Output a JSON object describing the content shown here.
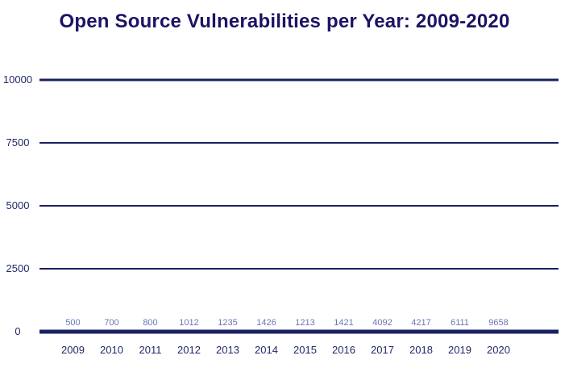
{
  "title": "Open Source Vulnerabilities per Year: 2009-2020",
  "colors": {
    "title_text": "#1b1464",
    "bar": "#222968",
    "highlight_bar": "#fa0d18",
    "value_label": "#6b77b5",
    "axis_label": "#222968",
    "gridline": "#1a2062",
    "background": "#ffffff"
  },
  "chart_data": {
    "type": "bar",
    "title": "Open Source Vulnerabilities per Year: 2009-2020",
    "categories": [
      "2009",
      "2010",
      "2011",
      "2012",
      "2013",
      "2014",
      "2015",
      "2016",
      "2017",
      "2018",
      "2019",
      "2020"
    ],
    "values": [
      500,
      700,
      800,
      1012,
      1235,
      1426,
      1213,
      1421,
      4092,
      4217,
      6111,
      9658
    ],
    "value_labels": [
      "500",
      "700",
      "800",
      "1012",
      "1235",
      "1426",
      "1213",
      "1421",
      "4092",
      "4217",
      "6111",
      "9658"
    ],
    "highlight_category": "2020",
    "xlabel": "",
    "ylabel": "",
    "ylim": [
      0,
      10000
    ],
    "yticks": [
      0,
      2500,
      5000,
      7500,
      10000
    ],
    "ytick_labels": [
      "0",
      "2500",
      "5000",
      "7500",
      "10000"
    ],
    "grid": "horizontal",
    "legend": "none",
    "bar_color": "#222968",
    "highlight_color": "#fa0d18"
  }
}
